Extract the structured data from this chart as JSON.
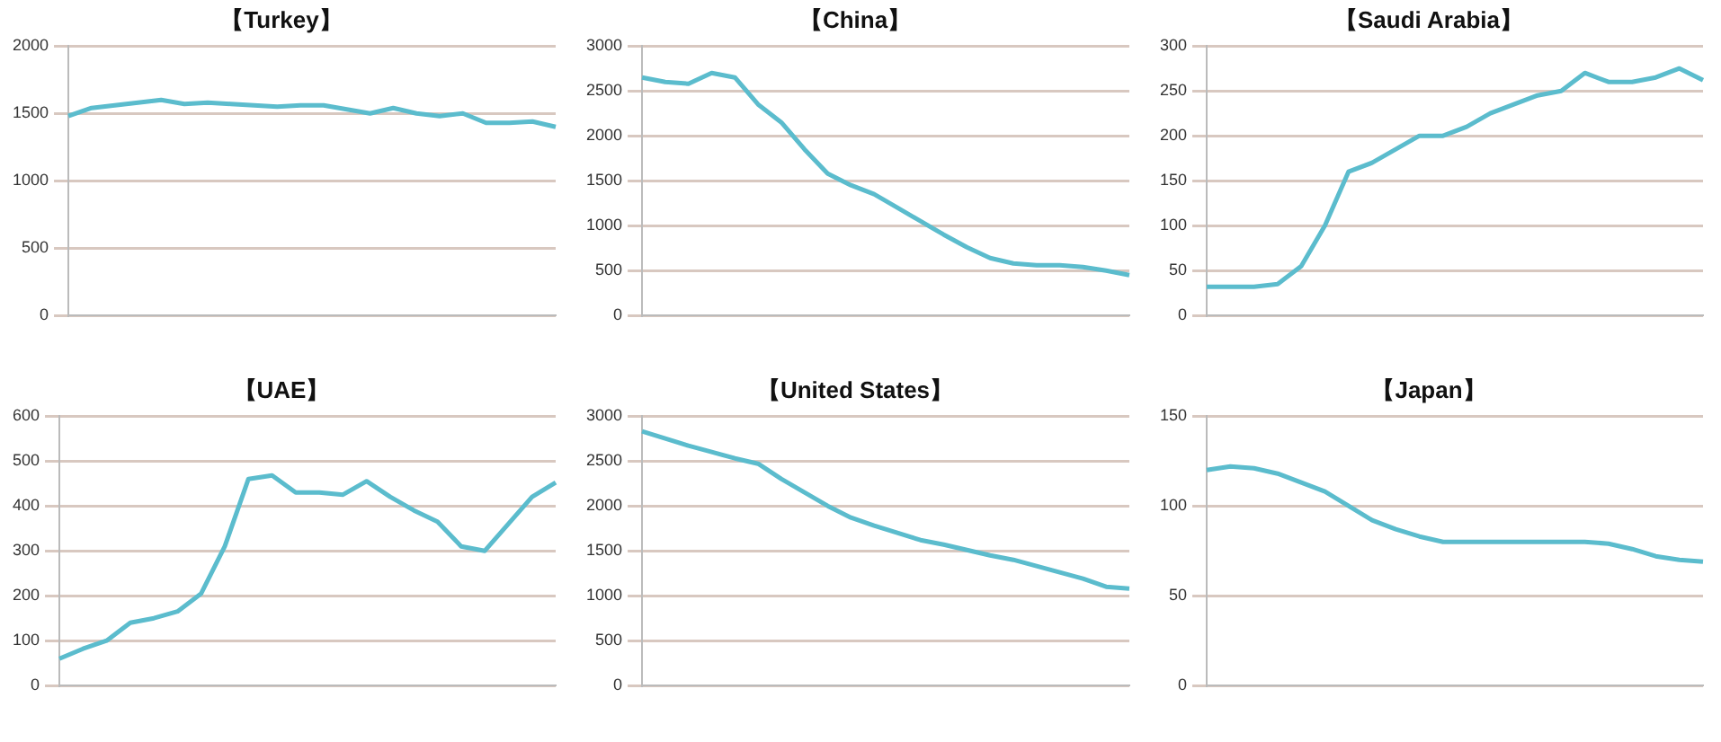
{
  "chart_data": [
    {
      "type": "line",
      "title": "【Turkey】",
      "categories": [
        null,
        null,
        null,
        null,
        null,
        null,
        null,
        null,
        null,
        null,
        null,
        null,
        null,
        null,
        null,
        null,
        null,
        null,
        null,
        null,
        null,
        null
      ],
      "series": [
        {
          "color": "#5bbccd",
          "values": [
            1480,
            1540,
            1560,
            1580,
            1600,
            1570,
            1580,
            1570,
            1560,
            1550,
            1560,
            1560,
            1530,
            1500,
            1540,
            1500,
            1480,
            1500,
            1430,
            1430,
            1440,
            1400
          ]
        }
      ],
      "ylim": [
        0,
        2000
      ],
      "yticks": [
        0,
        500,
        1000,
        1500,
        2000
      ],
      "grid": "y",
      "legend": false
    },
    {
      "type": "line",
      "title": "【China】",
      "categories": [
        null,
        null,
        null,
        null,
        null,
        null,
        null,
        null,
        null,
        null,
        null,
        null,
        null,
        null,
        null,
        null,
        null,
        null,
        null,
        null,
        null,
        null
      ],
      "series": [
        {
          "color": "#5bbccd",
          "values": [
            2650,
            2600,
            2580,
            2700,
            2650,
            2350,
            2150,
            1850,
            1580,
            1450,
            1350,
            1200,
            1050,
            900,
            760,
            640,
            580,
            560,
            560,
            540,
            500,
            450
          ]
        }
      ],
      "ylim": [
        0,
        3000
      ],
      "yticks": [
        0,
        500,
        1000,
        1500,
        2000,
        2500,
        3000
      ],
      "grid": "y",
      "legend": false
    },
    {
      "type": "line",
      "title": "【Saudi Arabia】",
      "categories": [
        null,
        null,
        null,
        null,
        null,
        null,
        null,
        null,
        null,
        null,
        null,
        null,
        null,
        null,
        null,
        null,
        null,
        null,
        null,
        null,
        null,
        null
      ],
      "series": [
        {
          "color": "#5bbccd",
          "values": [
            32,
            32,
            32,
            35,
            55,
            100,
            160,
            170,
            185,
            200,
            200,
            210,
            225,
            235,
            245,
            250,
            270,
            260,
            260,
            265,
            275,
            262
          ]
        }
      ],
      "ylim": [
        0,
        300
      ],
      "yticks": [
        0,
        50,
        100,
        150,
        200,
        250,
        300
      ],
      "grid": "y",
      "legend": false
    },
    {
      "type": "line",
      "title": "【UAE】",
      "categories": [
        null,
        null,
        null,
        null,
        null,
        null,
        null,
        null,
        null,
        null,
        null,
        null,
        null,
        null,
        null,
        null,
        null,
        null,
        null,
        null,
        null,
        null
      ],
      "series": [
        {
          "color": "#5bbccd",
          "values": [
            60,
            82,
            100,
            140,
            150,
            165,
            205,
            310,
            460,
            468,
            430,
            430,
            425,
            455,
            420,
            390,
            365,
            310,
            300,
            360,
            420,
            452
          ]
        }
      ],
      "ylim": [
        0,
        600
      ],
      "yticks": [
        0,
        100,
        200,
        300,
        400,
        500,
        600
      ],
      "grid": "y",
      "legend": false
    },
    {
      "type": "line",
      "title": "【United States】",
      "categories": [
        null,
        null,
        null,
        null,
        null,
        null,
        null,
        null,
        null,
        null,
        null,
        null,
        null,
        null,
        null,
        null,
        null,
        null,
        null,
        null,
        null,
        null
      ],
      "series": [
        {
          "color": "#5bbccd",
          "values": [
            2830,
            2750,
            2670,
            2600,
            2530,
            2470,
            2300,
            2150,
            2000,
            1870,
            1780,
            1700,
            1620,
            1570,
            1510,
            1450,
            1400,
            1330,
            1260,
            1190,
            1100,
            1080
          ]
        }
      ],
      "ylim": [
        0,
        3000
      ],
      "yticks": [
        0,
        500,
        1000,
        1500,
        2000,
        2500,
        3000
      ],
      "grid": "y",
      "legend": false
    },
    {
      "type": "line",
      "title": "【Japan】",
      "categories": [
        null,
        null,
        null,
        null,
        null,
        null,
        null,
        null,
        null,
        null,
        null,
        null,
        null,
        null,
        null,
        null,
        null,
        null,
        null,
        null,
        null,
        null
      ],
      "series": [
        {
          "color": "#5bbccd",
          "values": [
            120,
            122,
            121,
            118,
            113,
            108,
            100,
            92,
            87,
            83,
            80,
            80,
            80,
            80,
            80,
            80,
            80,
            79,
            76,
            72,
            70,
            69
          ]
        }
      ],
      "ylim": [
        0,
        150
      ],
      "yticks": [
        0,
        50,
        100,
        150
      ],
      "grid": "y",
      "legend": false
    }
  ]
}
